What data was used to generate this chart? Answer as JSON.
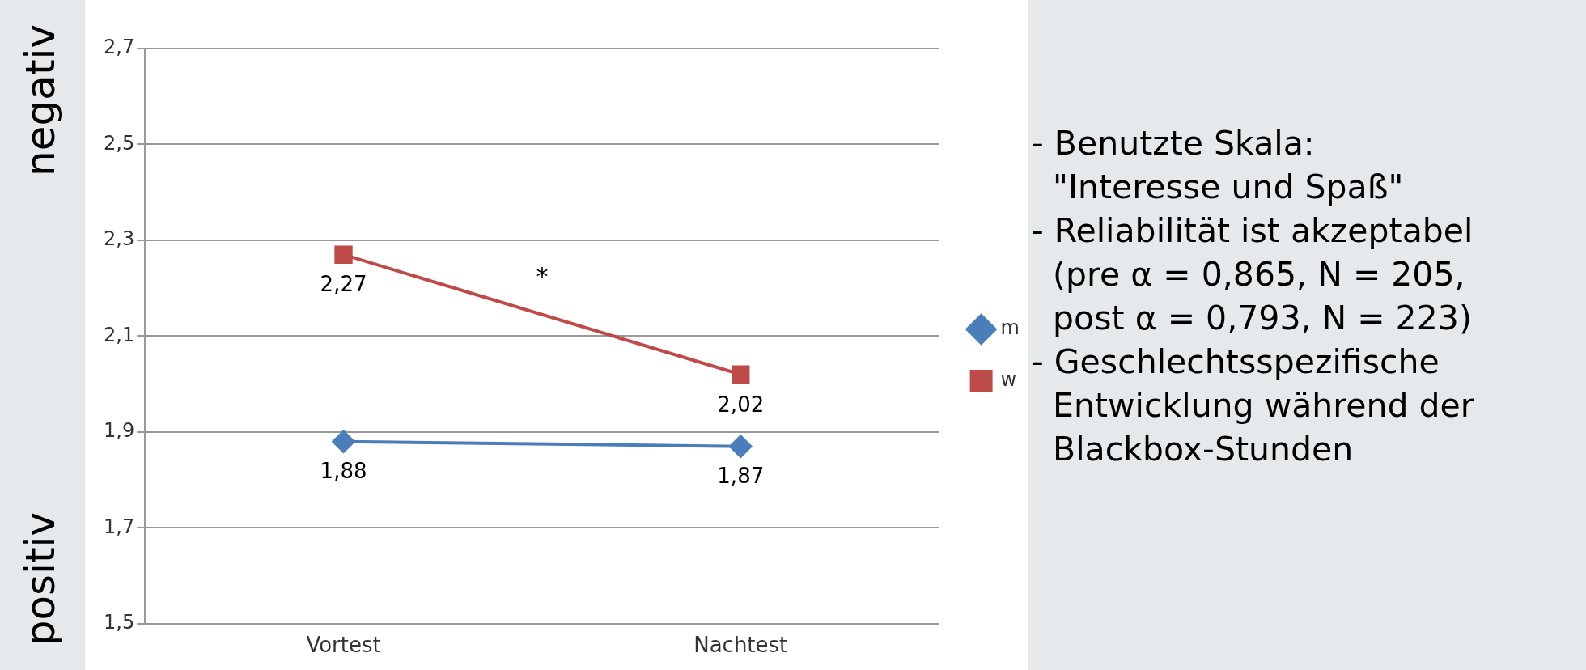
{
  "chart_data": {
    "type": "line",
    "categories": [
      "Vortest",
      "Nachtest"
    ],
    "series": [
      {
        "name": "m",
        "color": "#4a7ebb",
        "values": [
          1.88,
          1.87
        ],
        "value_labels": [
          "1,88",
          "1,87"
        ],
        "marker": "diamond"
      },
      {
        "name": "w",
        "color": "#be4b48",
        "values": [
          2.27,
          2.02
        ],
        "value_labels": [
          "2,27",
          "2,02"
        ],
        "marker": "square"
      }
    ],
    "ylim": [
      1.5,
      2.7
    ],
    "yticks": [
      {
        "value": 1.5,
        "label": "1,5"
      },
      {
        "value": 1.7,
        "label": "1,7"
      },
      {
        "value": 1.9,
        "label": "1,9"
      },
      {
        "value": 2.1,
        "label": "2,1"
      },
      {
        "value": 2.3,
        "label": "2,3"
      },
      {
        "value": 2.5,
        "label": "2,5"
      },
      {
        "value": 2.7,
        "label": "2,7"
      }
    ],
    "grid": "y",
    "legend": "right",
    "annotations": [
      "negativ",
      "positiv",
      "*",
      "- Benutzte Skala:\n  \"Interesse und Spaß\"",
      "- Reliabilität ist akzeptabel\n  (pre α = 0,865, N = 205,\n  post α = 0,793, N = 223)",
      "- Geschlechtsspezifische\n  Entwicklung während der\n  Blackbox-Stunden"
    ]
  }
}
